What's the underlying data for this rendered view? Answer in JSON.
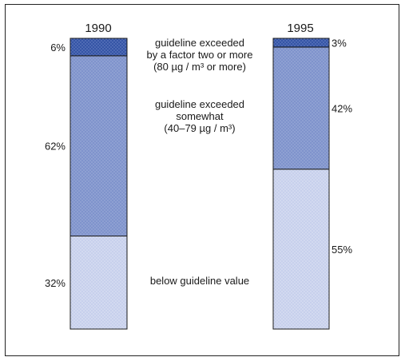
{
  "chart_data": {
    "type": "bar",
    "stacked": true,
    "categories": [
      "1990",
      "1995"
    ],
    "series": [
      {
        "name": "below guideline value",
        "values": [
          32,
          55
        ],
        "color": "#c7d0ec"
      },
      {
        "name": "guideline exceeded somewhat (40–79 µg / m³)",
        "values": [
          62,
          42
        ],
        "color": "#7f93cc"
      },
      {
        "name": "guideline exceeded by a factor two or more (80 µg / m³ or more)",
        "values": [
          6,
          3
        ],
        "color": "#3555a6"
      }
    ],
    "value_labels": {
      "1990": [
        "32%",
        "62%",
        "6%"
      ],
      "1995": [
        "55%",
        "42%",
        "3%"
      ]
    },
    "ylim": [
      0,
      100
    ],
    "legend": "center, between bars",
    "grid": false,
    "title": "",
    "xlabel": "",
    "ylabel": ""
  },
  "legend_text": {
    "high": [
      "guideline exceeded",
      "by a factor two or more",
      "(80 µg / m³ or more)"
    ],
    "mid": [
      "guideline exceeded",
      "somewhat",
      "(40–79 µg / m³)"
    ],
    "low": [
      "below guideline value"
    ]
  }
}
